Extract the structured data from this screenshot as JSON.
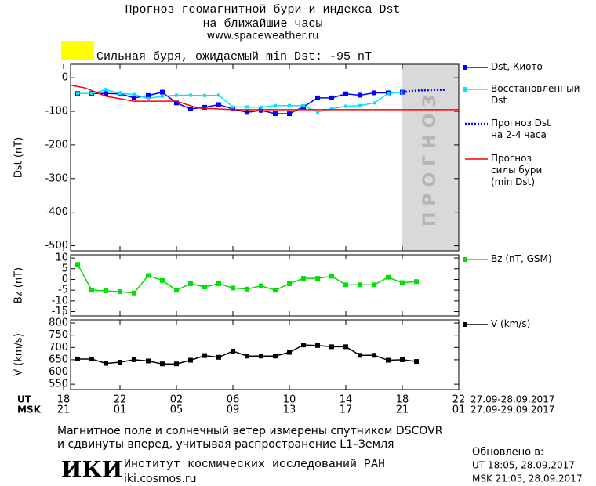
{
  "header": {
    "title": "Прогноз геомагнитной бури и индекса Dst",
    "title2": "на ближайшие часы",
    "url": "www.spaceweather.ru",
    "alert_color": "#ffff00",
    "alert": "Сильная буря, ожидаемый min Dst: -95 nT"
  },
  "time_axis": {
    "ut_label": "UT",
    "msk_label": "MSK",
    "ut_ticks": [
      {
        "value": 0,
        "label": "18"
      },
      {
        "value": 4,
        "label": "22"
      },
      {
        "value": 8,
        "label": "02"
      },
      {
        "value": 12,
        "label": "06"
      },
      {
        "value": 16,
        "label": "10"
      },
      {
        "value": 20,
        "label": "14"
      },
      {
        "value": 24,
        "label": "18"
      },
      {
        "value": 28,
        "label": "22"
      }
    ],
    "msk_ticks": [
      {
        "value": 0,
        "label": "21"
      },
      {
        "value": 4,
        "label": "01"
      },
      {
        "value": 8,
        "label": "05"
      },
      {
        "value": 12,
        "label": "09"
      },
      {
        "value": 16,
        "label": "13"
      },
      {
        "value": 20,
        "label": "17"
      },
      {
        "value": 24,
        "label": "21"
      },
      {
        "value": 28,
        "label": "01"
      }
    ],
    "ut_range": "27.09-28.09.2017",
    "msk_range": "27.09-29.09.2017"
  },
  "chart_data": [
    {
      "type": "line",
      "ylabel": "Dst (nT)",
      "xlim": [
        0.5,
        28
      ],
      "ylim": [
        -515,
        40
      ],
      "yticks": [
        0,
        -100,
        -200,
        -300,
        -400,
        -500
      ],
      "band": {
        "x": [
          24,
          28
        ],
        "label": "ПРОГНОЗ",
        "color": "#d9d9d9"
      },
      "series": [
        {
          "name": "Dst, Киото",
          "color": "#0000ff",
          "marker": "square",
          "x": [
            1,
            2,
            3,
            4,
            5,
            6,
            7,
            8,
            9,
            10,
            11,
            12,
            13,
            14,
            15,
            16,
            17,
            18,
            19,
            20,
            21,
            22,
            23,
            24
          ],
          "values": [
            -47,
            -47,
            -47,
            -48,
            -60,
            -53,
            -43,
            -75,
            -93,
            -88,
            -80,
            -93,
            -103,
            -97,
            -107,
            -107,
            -87,
            -60,
            -60,
            -48,
            -52,
            -45,
            -45,
            -43
          ]
        },
        {
          "name": "Восстановленный\nDst",
          "color": "#00e5ff",
          "marker": "small-square",
          "x": [
            1,
            2,
            3,
            4,
            5,
            6,
            7,
            8,
            9,
            10,
            11,
            12,
            13,
            14,
            15,
            16,
            17,
            18,
            19,
            20,
            21,
            22,
            23,
            24
          ],
          "values": [
            -47,
            -47,
            -35,
            -47,
            -50,
            -62,
            -55,
            -52,
            -52,
            -53,
            -52,
            -87,
            -87,
            -88,
            -83,
            -83,
            -83,
            -102,
            -92,
            -85,
            -83,
            -75,
            -47,
            -43
          ]
        },
        {
          "name": "Прогноз Dst\nна 2-4 часа",
          "color": "#0000ff",
          "line_style": "dotted",
          "x": [
            24,
            25,
            26,
            27
          ],
          "values": [
            -43,
            -38,
            -37,
            -36
          ]
        },
        {
          "name": "Прогноз\nсилы бури\n(min Dst)",
          "color": "#ff0000",
          "x": [
            0.5,
            1.5,
            3,
            5,
            8,
            9.5,
            12,
            28
          ],
          "values": [
            -22,
            -30,
            -55,
            -70,
            -70,
            -90,
            -95,
            -95
          ]
        }
      ]
    },
    {
      "type": "line",
      "ylabel": "Bz (nT)",
      "xlim": [
        0.5,
        28
      ],
      "ylim": [
        -17,
        11.5
      ],
      "yticks": [
        10,
        5,
        0,
        -5,
        -10,
        -15
      ],
      "series": [
        {
          "name": "Bz (nT, GSM)",
          "color": "#00e000",
          "marker": "square",
          "x": [
            1,
            2,
            3,
            4,
            5,
            6,
            7,
            8,
            9,
            10,
            11,
            12,
            13,
            14,
            15,
            16,
            17,
            18,
            19,
            20,
            21,
            22,
            23,
            24,
            25
          ],
          "values": [
            7,
            -5,
            -5.3,
            -5.7,
            -6.3,
            1.8,
            -0.5,
            -5,
            -2,
            -3.5,
            -2,
            -4,
            -4.5,
            -3,
            -5,
            -2,
            0.5,
            0.5,
            1.5,
            -2.5,
            -2.5,
            -2.5,
            1,
            -1.5,
            -1
          ]
        }
      ]
    },
    {
      "type": "line",
      "ylabel": "V (km/s)",
      "xlim": [
        0.5,
        28
      ],
      "ylim": [
        528,
        813
      ],
      "yticks": [
        800,
        750,
        700,
        650,
        600,
        550
      ],
      "series": [
        {
          "name": "V (km/s)",
          "color": "#000000",
          "marker": "square",
          "x": [
            1,
            2,
            3,
            4,
            5,
            6,
            7,
            8,
            9,
            10,
            11,
            12,
            13,
            14,
            15,
            16,
            17,
            18,
            19,
            20,
            21,
            22,
            23,
            24,
            25
          ],
          "values": [
            653,
            653,
            635,
            640,
            650,
            645,
            633,
            633,
            648,
            667,
            660,
            685,
            665,
            665,
            665,
            680,
            710,
            708,
            703,
            703,
            668,
            668,
            648,
            650,
            643
          ]
        }
      ]
    }
  ],
  "footer": {
    "note1": "Магнитное поле и солнечный ветер измерены спутником DSCOVR",
    "note2": "и сдвинуты вперед, учитывая распространение L1–Земля",
    "logo": "ИКИ",
    "institute": "Институт космических исследований РАН",
    "site": "iki.cosmos.ru",
    "updated": "Обновлено в:",
    "updated_ut": "UT  18:05, 28.09.2017",
    "updated_msk": "MSK 21:05, 28.09.2017"
  }
}
